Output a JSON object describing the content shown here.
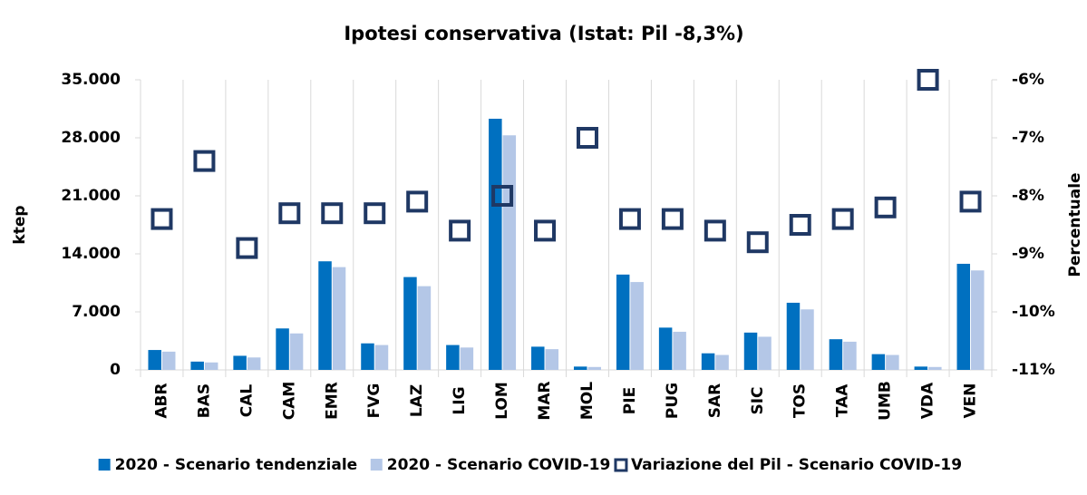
{
  "chart_data": {
    "type": "bar",
    "title": "Ipotesi conservativa (Istat: Pil -8,3%)",
    "y_label": "ktep",
    "y2_label": "Percentuale",
    "categories": [
      "ABR",
      "BAS",
      "CAL",
      "CAM",
      "EMR",
      "FVG",
      "LAZ",
      "LIG",
      "LOM",
      "MAR",
      "MOL",
      "PIE",
      "PUG",
      "SAR",
      "SIC",
      "TOS",
      "TAA",
      "UMB",
      "VDA",
      "VEN"
    ],
    "series": [
      {
        "name": "2020 - Scenario tendenziale",
        "color": "#0070c0",
        "values": [
          2400,
          1000,
          1700,
          5000,
          13100,
          3200,
          11200,
          3000,
          30300,
          2800,
          400,
          11500,
          5100,
          2000,
          4500,
          8100,
          3700,
          1900,
          400,
          12800
        ]
      },
      {
        "name": "2020 - Scenario COVID-19",
        "color": "#b4c7e7",
        "values": [
          2200,
          900,
          1500,
          4400,
          12400,
          3000,
          10100,
          2700,
          28300,
          2500,
          350,
          10600,
          4600,
          1800,
          4000,
          7300,
          3400,
          1800,
          350,
          12000
        ]
      },
      {
        "name": "Variazione del Pil - Scenario COVID-19",
        "color": "#1f3864",
        "axis": "y2",
        "values": [
          -8.4,
          -7.4,
          -8.9,
          -8.3,
          -8.3,
          -8.3,
          -8.1,
          -8.6,
          -8.0,
          -8.6,
          -7.0,
          -8.4,
          -8.4,
          -8.6,
          -8.8,
          -8.5,
          -8.4,
          -8.2,
          -6.0,
          -8.1
        ]
      }
    ],
    "ylim": [
      0,
      35000
    ],
    "yticks": [
      0,
      {
        "value": 7000,
        "label": "7.000"
      },
      {
        "value": 14000,
        "label": "14.000"
      },
      {
        "value": 21000,
        "label": "21.000"
      },
      {
        "value": 28000,
        "label": "28.000"
      },
      {
        "value": 35000,
        "label": "35.000"
      }
    ],
    "y2lim": [
      -11,
      -6
    ],
    "y2ticks": [
      {
        "value": -11,
        "label": "-11%"
      },
      {
        "value": -10,
        "label": "-10%"
      },
      {
        "value": -9,
        "label": "-9%"
      },
      {
        "value": -8,
        "label": "-8%"
      },
      {
        "value": -7,
        "label": "-7%"
      },
      {
        "value": -6,
        "label": "-6%"
      }
    ],
    "legend": "bottom"
  }
}
